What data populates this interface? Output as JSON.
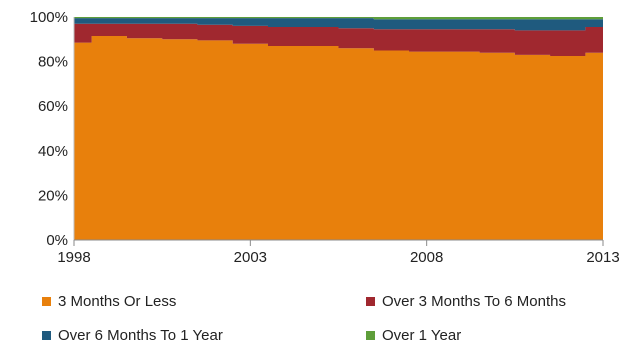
{
  "chart_data": {
    "type": "area",
    "title": "",
    "xlabel": "",
    "ylabel": "",
    "xlim": [
      1998,
      2013
    ],
    "ylim": [
      0,
      100
    ],
    "y_ticks": [
      "0%",
      "20%",
      "40%",
      "60%",
      "80%",
      "100%"
    ],
    "x_ticks": [
      "1998",
      "2003",
      "2008",
      "2013"
    ],
    "stacked": true,
    "grid": false,
    "legend_position": "bottom",
    "x": [
      1998.0,
      1998.5,
      1999.0,
      1999.5,
      2000.0,
      2000.5,
      2001.0,
      2001.5,
      2002.0,
      2002.5,
      2003.0,
      2003.5,
      2004.0,
      2004.5,
      2005.0,
      2005.5,
      2006.0,
      2006.5,
      2007.0,
      2007.5,
      2008.0,
      2008.5,
      2009.0,
      2009.5,
      2010.0,
      2010.5,
      2011.0,
      2011.5,
      2012.0,
      2012.5,
      2013.0
    ],
    "series": [
      {
        "name": "3 Months Or Less",
        "color": "#E8800C",
        "values": [
          88.5,
          91.5,
          91.5,
          90.5,
          90.5,
          90,
          90,
          89.5,
          89.5,
          88,
          88,
          87,
          87,
          87,
          87,
          86,
          86,
          85,
          85,
          84.5,
          84.5,
          84.5,
          84.5,
          84,
          84,
          83,
          83,
          82.5,
          82.5,
          84,
          84
        ]
      },
      {
        "name": "Over 3 Months To 6 Months",
        "color": "#A0282F",
        "values": [
          8.5,
          5.5,
          5.5,
          6.5,
          6.5,
          7,
          7,
          7,
          7,
          8,
          8,
          8.5,
          8.5,
          8.5,
          8.5,
          9,
          9,
          9.5,
          9.5,
          10,
          10,
          10,
          10,
          10.5,
          10.5,
          11,
          11,
          11.5,
          11.5,
          11.5,
          11.5
        ]
      },
      {
        "name": "Over 6 Months To 1 Year",
        "color": "#1F5A7E",
        "values": [
          2.5,
          2.5,
          2.5,
          2.5,
          2.5,
          2.5,
          2.5,
          3,
          3,
          3.5,
          3.5,
          4,
          4,
          4,
          4,
          4.5,
          4.5,
          4.5,
          4.5,
          4.5,
          4.5,
          4.5,
          4.5,
          4.5,
          4.5,
          5,
          5,
          5,
          5,
          3.5,
          3.5
        ]
      },
      {
        "name": "Over 1 Year",
        "color": "#5E9E3A",
        "values": [
          0.5,
          0.5,
          0.5,
          0.5,
          0.5,
          0.5,
          0.5,
          0.5,
          0.5,
          0.5,
          0.5,
          0.5,
          0.5,
          0.5,
          0.5,
          0.5,
          0.5,
          1,
          1,
          1,
          1,
          1,
          1,
          1,
          1,
          1,
          1,
          1,
          1,
          1,
          1
        ]
      }
    ]
  }
}
